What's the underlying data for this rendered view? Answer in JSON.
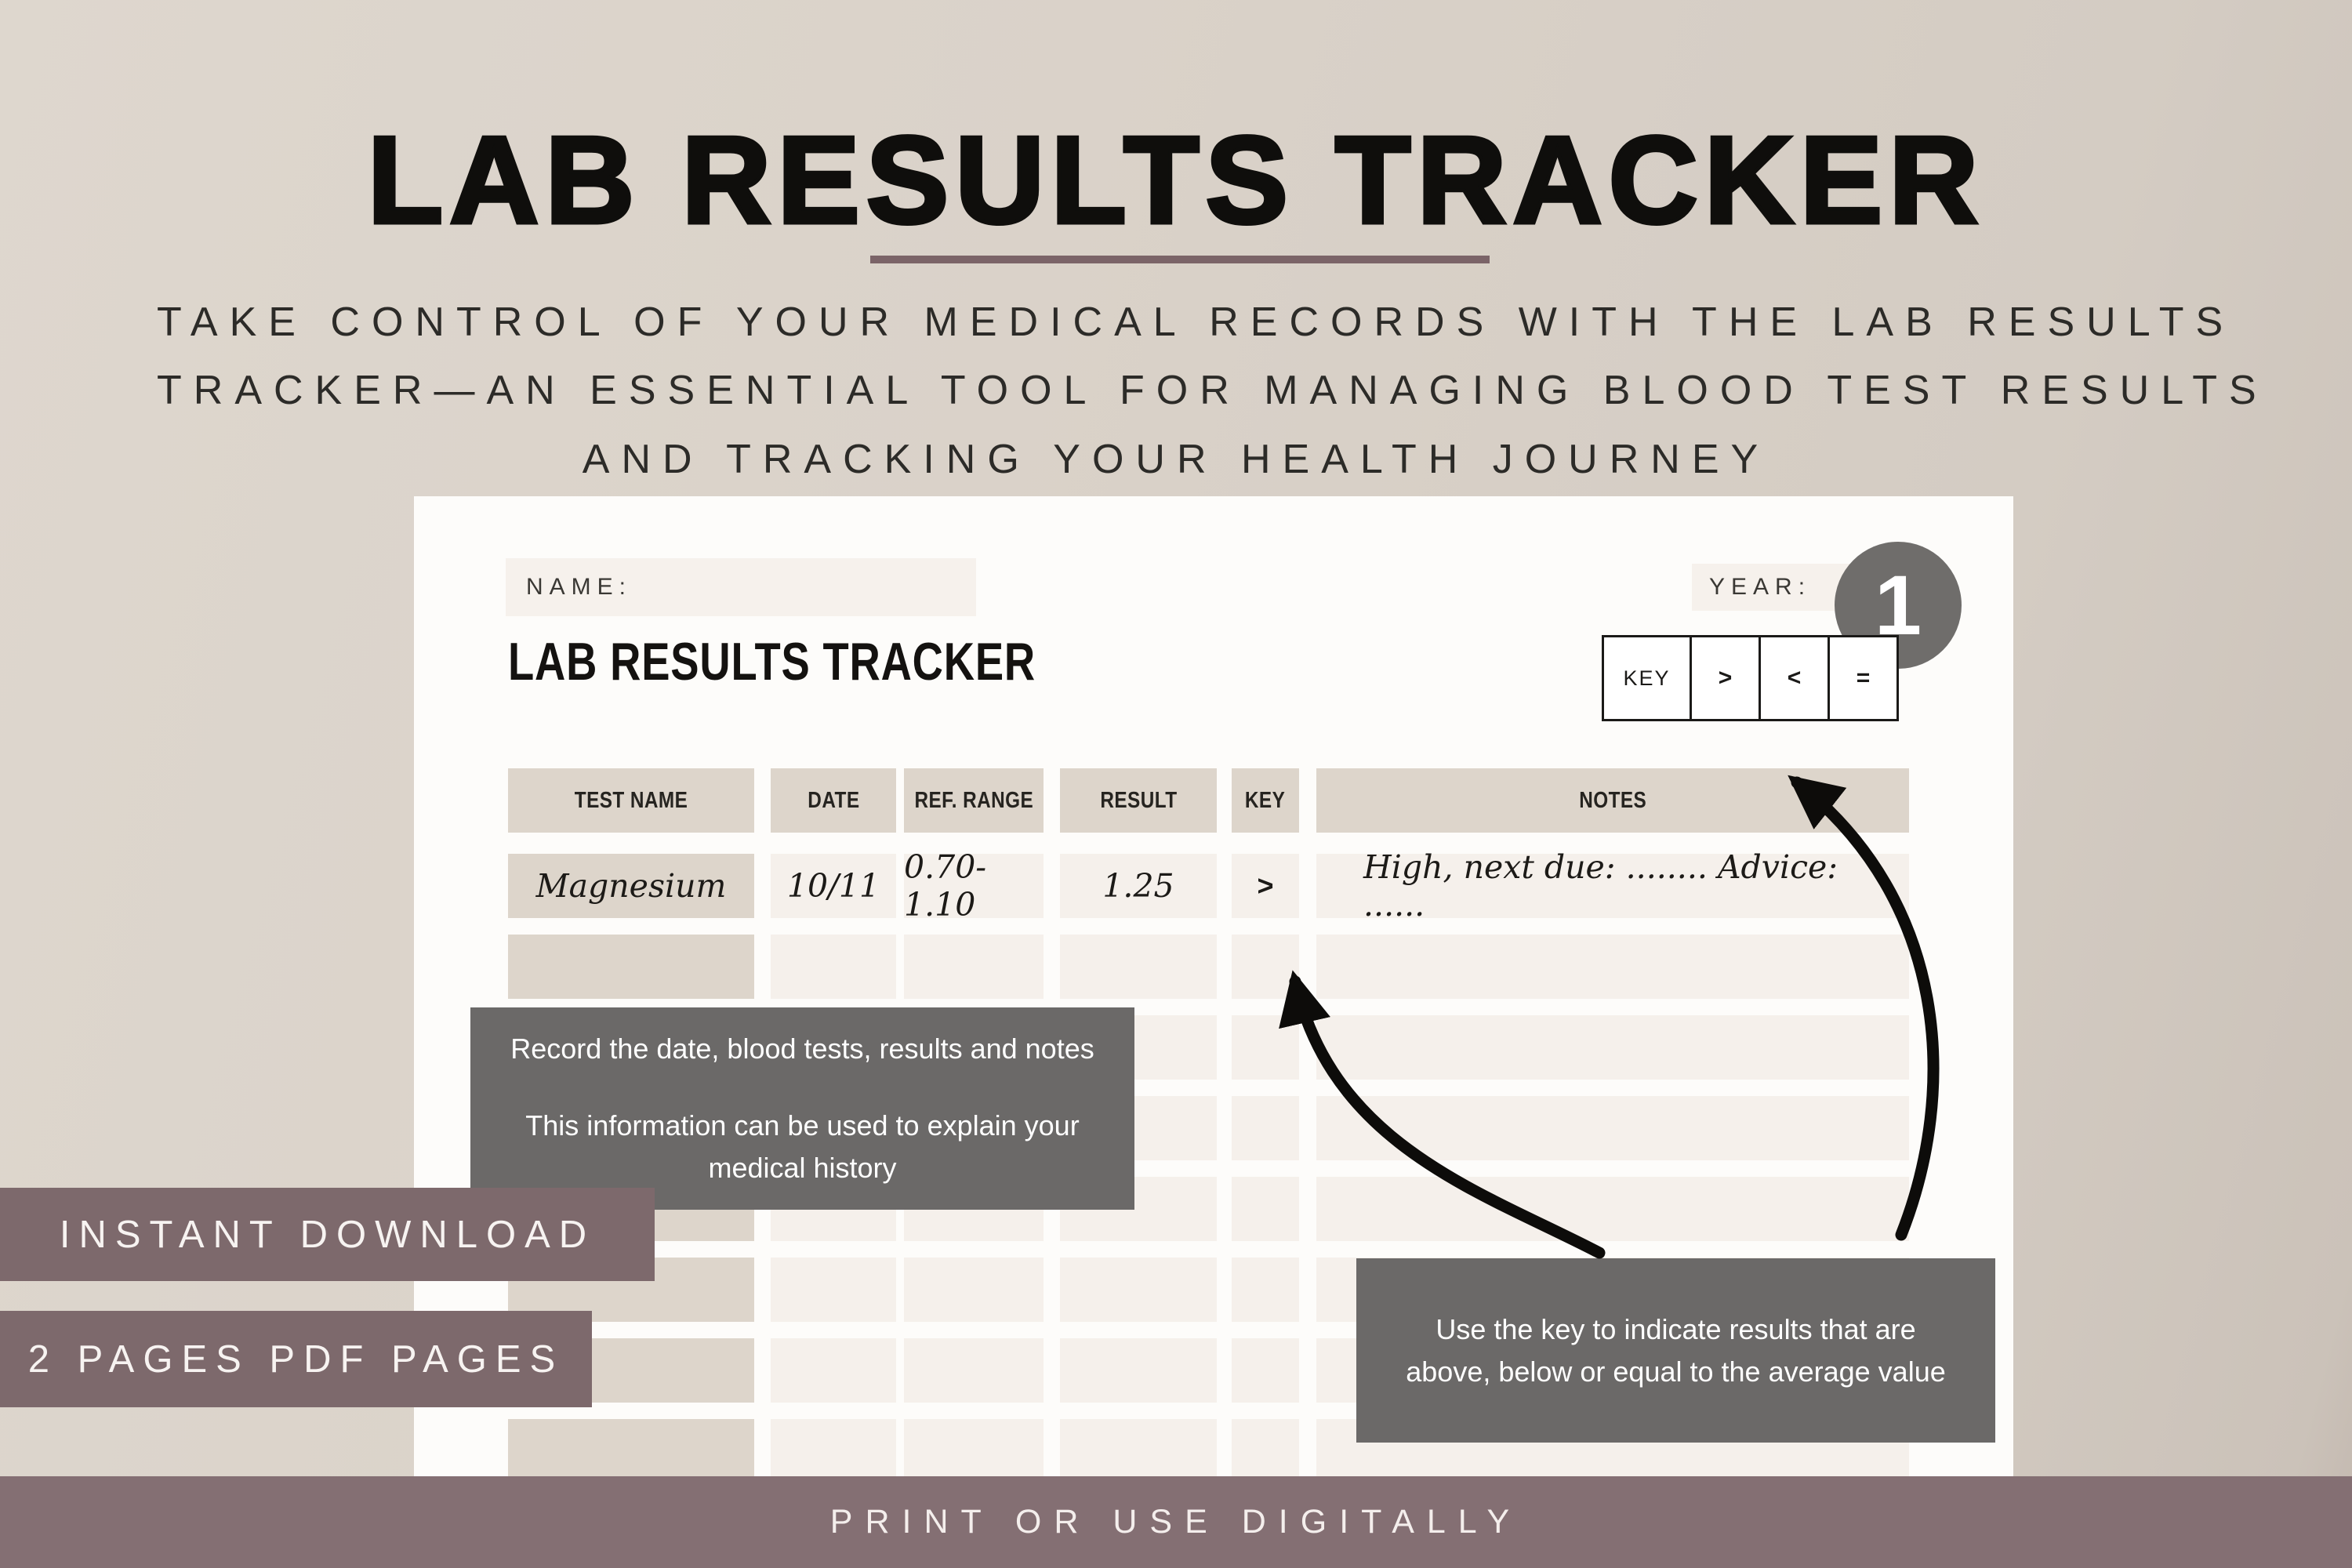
{
  "hero": {
    "title": "LAB RESULTS TRACKER",
    "subtitle_lines": [
      "TAKE CONTROL OF YOUR MEDICAL RECORDS WITH THE LAB RESULTS",
      "TRACKER—AN ESSENTIAL TOOL FOR MANAGING BLOOD TEST RESULTS",
      "AND TRACKING YOUR HEALTH JOURNEY"
    ]
  },
  "page_badge": "1",
  "document": {
    "name_label": "NAME:",
    "year_label": "YEAR:",
    "heading": "LAB RESULTS TRACKER",
    "key_legend": {
      "label": "KEY",
      "symbols": [
        ">",
        "<",
        "="
      ]
    },
    "table": {
      "headers": [
        "TEST NAME",
        "DATE",
        "REF. RANGE",
        "RESULT",
        "KEY",
        "NOTES"
      ],
      "rows": [
        {
          "test_name": "Magnesium",
          "date": "10/11",
          "ref_range": "0.70-1.10",
          "result": "1.25",
          "key": ">",
          "notes": "High, next due: ........ Advice: ......"
        }
      ],
      "empty_row_count": 8
    }
  },
  "callouts": {
    "record_info": {
      "line1": "Record the date, blood tests, results and notes",
      "line2": "This information can be used to explain your medical history"
    },
    "key_usage": "Use the key to indicate results that are above, below or equal to the average value"
  },
  "banners": {
    "instant_download": "INSTANT DOWNLOAD",
    "page_count": "2 PAGES PDF PAGES",
    "footer": "PRINT OR USE DIGITALLY"
  },
  "colors": {
    "page_background": "#d9d1c8",
    "card_background": "#fdfcfa",
    "field_background": "#f6f1ec",
    "header_cell": "#ddd5cb",
    "row_cell": "#f5f0eb",
    "callout_background": "#6b6968",
    "badge_background": "#6f6d6b",
    "banner_background": "#7d696c",
    "footer_background": "#846f73",
    "title_underline": "#7b6468",
    "arrow": "#0d0c0a",
    "text_dark": "#141210",
    "text_light": "#ffffff"
  }
}
